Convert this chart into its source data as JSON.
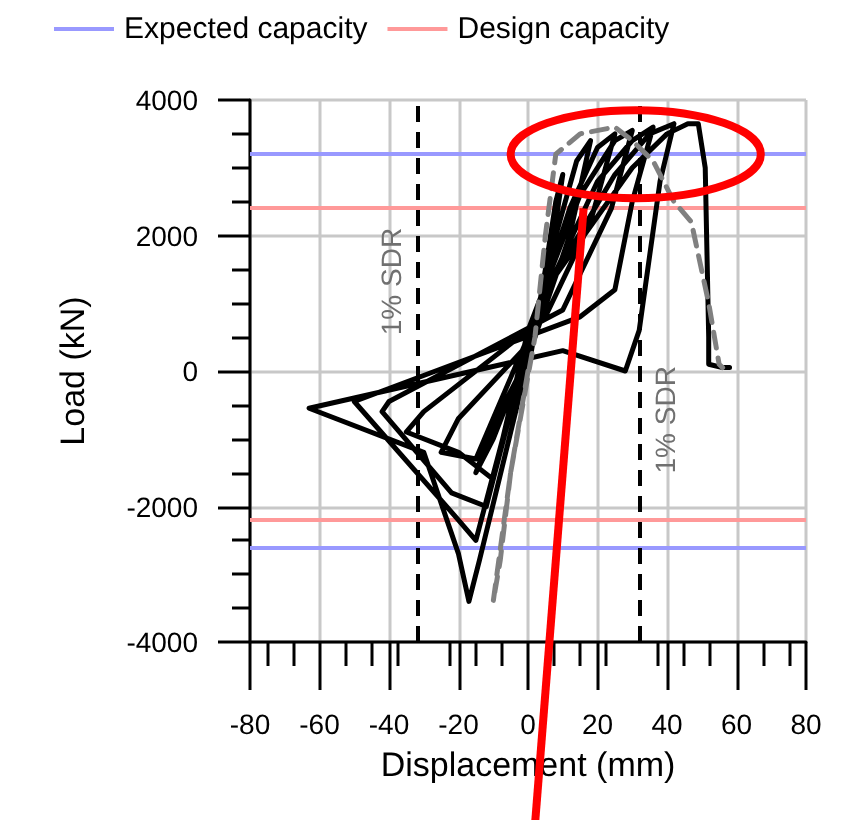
{
  "chart_data": {
    "type": "line",
    "xlabel": "Displacement (mm)",
    "ylabel": "Load (kN)",
    "xlim": [
      -80,
      80
    ],
    "xticks": [
      -80,
      -60,
      -40,
      -20,
      0,
      20,
      40,
      60,
      80
    ],
    "ylim": [
      -4000,
      4000
    ],
    "yticks": [
      -4000,
      -2000,
      0,
      2000,
      4000
    ],
    "grid": true,
    "legend": "top",
    "marker": "none",
    "series": [
      {
        "color": "#000000",
        "line_style": "solid",
        "x": [
          0,
          5,
          8,
          10,
          6,
          0,
          -10,
          -15,
          -10,
          0,
          8,
          14,
          18,
          12,
          2,
          -20,
          -25,
          -15,
          0,
          12,
          20,
          25,
          18,
          5,
          -30,
          -35,
          -20,
          -10,
          0,
          15,
          25,
          30,
          24,
          10,
          -40,
          -42,
          -22,
          -12,
          2,
          20,
          30,
          36,
          30,
          25,
          15,
          -50,
          -20,
          -15,
          3,
          25,
          35,
          42,
          38,
          32,
          28,
          10,
          -63,
          -30,
          -20,
          -17,
          -14,
          5,
          30,
          40,
          46,
          49,
          51,
          52,
          52,
          56,
          58
        ],
        "values": [
          0,
          1500,
          2500,
          2900,
          1500,
          200,
          -800,
          -1500,
          -1000,
          300,
          2000,
          3100,
          3400,
          2000,
          500,
          -700,
          -1200,
          -1300,
          500,
          2400,
          3300,
          3500,
          2200,
          800,
          -600,
          -900,
          -1200,
          -1600,
          600,
          2600,
          3400,
          3550,
          2400,
          900,
          -450,
          -600,
          -1800,
          -2000,
          800,
          2800,
          3400,
          3600,
          2500,
          1200,
          800,
          -450,
          -2200,
          -2500,
          1000,
          2900,
          3500,
          3650,
          2800,
          600,
          0,
          300,
          -550,
          -1200,
          -2700,
          -3400,
          -2800,
          1200,
          3000,
          3500,
          3650,
          3650,
          3000,
          500,
          100,
          50,
          50
        ]
      },
      {
        "color": "#808080",
        "line_style": "dashed",
        "x": [
          0,
          -5,
          -8,
          -10,
          -5,
          2,
          5,
          8,
          15,
          25,
          30,
          36,
          42,
          47,
          52,
          55,
          56
        ],
        "values": [
          0,
          -1500,
          -2800,
          -3400,
          -1500,
          500,
          2000,
          3200,
          3500,
          3600,
          3400,
          3100,
          2500,
          2200,
          1000,
          100,
          50
        ]
      }
    ],
    "ref_lines": [
      {
        "axis": "y",
        "value": 3200,
        "label": "Expected capacity",
        "color": "#9999ff"
      },
      {
        "axis": "y",
        "value": -2600,
        "color": "#9999ff"
      },
      {
        "axis": "y",
        "value": 2400,
        "label": "Design capacity",
        "color": "#ff9999"
      },
      {
        "axis": "y",
        "value": -2200,
        "color": "#ff9999"
      },
      {
        "axis": "x",
        "value": -32,
        "label": "1% SDR",
        "color": "#000000",
        "line_style": "dashed"
      },
      {
        "axis": "x",
        "value": 32,
        "label": "1% SDR",
        "color": "#000000",
        "line_style": "dashed"
      }
    ]
  }
}
